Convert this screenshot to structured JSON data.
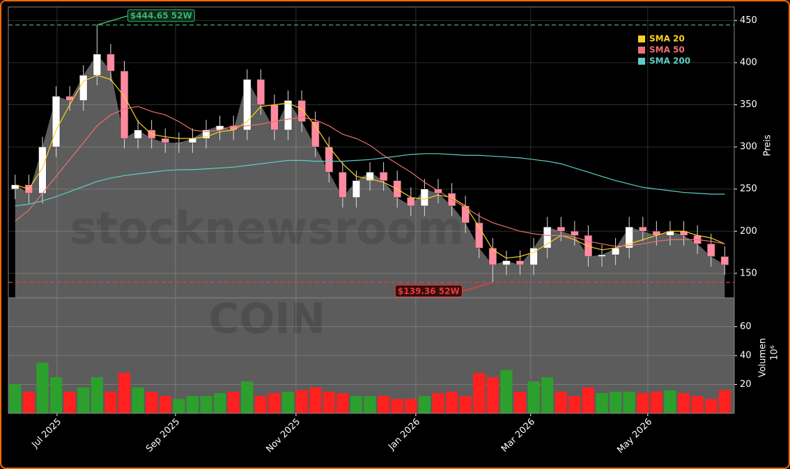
{
  "chart_data": [
    {
      "type": "candlestick",
      "x": [
        0,
        1,
        2,
        3,
        4,
        5,
        6,
        7,
        8,
        9,
        10,
        11,
        12,
        13,
        14,
        15,
        16,
        17,
        18,
        19,
        20,
        21,
        22,
        23,
        24,
        25,
        26,
        27,
        28,
        29,
        30,
        31,
        32,
        33,
        34,
        35,
        36,
        37,
        38,
        39,
        40,
        41,
        42,
        43,
        44,
        45,
        46,
        47,
        48,
        49,
        50,
        51,
        52
      ],
      "open": [
        250,
        255,
        245,
        300,
        360,
        355,
        385,
        410,
        390,
        310,
        320,
        310,
        305,
        305,
        310,
        320,
        325,
        320,
        380,
        350,
        320,
        355,
        330,
        300,
        270,
        240,
        260,
        270,
        260,
        240,
        230,
        250,
        245,
        230,
        210,
        180,
        160,
        165,
        160,
        180,
        205,
        200,
        195,
        170,
        172,
        180,
        205,
        200,
        195,
        200,
        195,
        185,
        170
      ],
      "high": [
        267,
        267,
        312,
        372,
        372,
        397,
        444.65,
        422,
        402,
        332,
        332,
        322,
        317,
        322,
        332,
        337,
        337,
        392,
        392,
        362,
        367,
        367,
        342,
        312,
        282,
        272,
        282,
        282,
        272,
        252,
        262,
        262,
        257,
        242,
        222,
        192,
        177,
        177,
        192,
        217,
        217,
        212,
        207,
        184,
        192,
        217,
        217,
        212,
        212,
        212,
        207,
        197,
        182
      ],
      "low": [
        238,
        233,
        233,
        288,
        343,
        343,
        373,
        378,
        298,
        298,
        298,
        293,
        293,
        293,
        298,
        308,
        308,
        308,
        338,
        308,
        308,
        318,
        288,
        258,
        228,
        228,
        248,
        248,
        228,
        218,
        218,
        233,
        218,
        198,
        168,
        139.36,
        148,
        148,
        148,
        168,
        188,
        183,
        158,
        158,
        160,
        168,
        188,
        183,
        183,
        183,
        173,
        158,
        148
      ],
      "close": [
        255,
        245,
        300,
        360,
        355,
        385,
        410,
        390,
        310,
        320,
        310,
        305,
        305,
        310,
        320,
        325,
        320,
        380,
        350,
        320,
        355,
        330,
        300,
        270,
        240,
        260,
        270,
        260,
        240,
        230,
        250,
        245,
        230,
        210,
        180,
        160,
        165,
        160,
        180,
        205,
        200,
        195,
        170,
        172,
        180,
        205,
        200,
        195,
        200,
        195,
        185,
        170,
        160
      ],
      "series": [
        {
          "name": "SMA 20",
          "color": "#ffd21f",
          "values": [
            255,
            250,
            275,
            320,
            350,
            378,
            385,
            380,
            360,
            330,
            315,
            312,
            310,
            310,
            312,
            318,
            320,
            330,
            348,
            350,
            352,
            345,
            325,
            300,
            280,
            265,
            262,
            258,
            250,
            240,
            238,
            243,
            240,
            230,
            205,
            178,
            168,
            170,
            175,
            185,
            195,
            190,
            182,
            178,
            180,
            185,
            190,
            195,
            200,
            200,
            195,
            192,
            185
          ]
        },
        {
          "name": "SMA 50",
          "color": "#f07070",
          "values": [
            212,
            225,
            245,
            265,
            285,
            305,
            325,
            338,
            345,
            348,
            342,
            338,
            330,
            320,
            318,
            320,
            325,
            325,
            327,
            330,
            333,
            335,
            332,
            325,
            315,
            310,
            302,
            290,
            280,
            270,
            258,
            248,
            238,
            228,
            218,
            210,
            205,
            200,
            197,
            195,
            195,
            193,
            188,
            185,
            182,
            183,
            185,
            188,
            190,
            190,
            190,
            188,
            185
          ]
        },
        {
          "name": "SMA 200",
          "color": "#5ecfc8",
          "values": [
            230,
            232,
            236,
            241,
            247,
            253,
            259,
            263,
            266,
            268,
            270,
            272,
            273,
            273,
            274,
            275,
            276,
            278,
            280,
            282,
            284,
            284,
            283,
            283,
            283,
            284,
            285,
            287,
            289,
            291,
            292,
            292,
            291,
            290,
            290,
            289,
            288,
            287,
            285,
            283,
            280,
            275,
            270,
            265,
            260,
            256,
            252,
            250,
            248,
            246,
            245,
            244,
            244
          ]
        }
      ],
      "up_color": "#2ca02c",
      "down_color": "#ff2020",
      "area_color": "#5c5c5c",
      "xlim": [
        -0.5,
        52.7
      ],
      "ylim": [
        121,
        466
      ],
      "yticks": [
        150,
        200,
        250,
        300,
        350,
        400,
        450
      ],
      "ylabel": "Preis",
      "grid": true,
      "legend": "upper right",
      "watermark": "stocknewsroom",
      "annotations": [
        {
          "text": "$444.65 52W",
          "x": 6,
          "value": 444.65,
          "color": "#3cb371"
        },
        {
          "text": "$139.36 52W",
          "x": 35,
          "value": 139.36,
          "color": "#e04040"
        }
      ]
    },
    {
      "type": "bar",
      "values": [
        20,
        15,
        35,
        25,
        15,
        18,
        25,
        15,
        28,
        18,
        15,
        12,
        10,
        12,
        12,
        14,
        15,
        22,
        12,
        14,
        15,
        16,
        18,
        15,
        14,
        12,
        12,
        12,
        10,
        10,
        12,
        14,
        15,
        12,
        28,
        25,
        30,
        15,
        22,
        25,
        15,
        12,
        18,
        14,
        15,
        15,
        14,
        15,
        16,
        14,
        12,
        10,
        16
      ],
      "ylim": [
        0,
        80
      ],
      "yticks": [
        20,
        40,
        60
      ],
      "ylabel": "Volumen",
      "multiplier": "10⁶",
      "watermark": "COIN",
      "xticks": [
        {
          "value": 3.07,
          "label": "Jul 2025"
        },
        {
          "value": 11.75,
          "label": "Sep 2025"
        },
        {
          "value": 20.58,
          "label": "Nov 2025"
        },
        {
          "value": 29.36,
          "label": "Jan 2026"
        },
        {
          "value": 37.78,
          "label": "Mar 2026"
        },
        {
          "value": 46.36,
          "label": "May 2026"
        }
      ]
    }
  ]
}
